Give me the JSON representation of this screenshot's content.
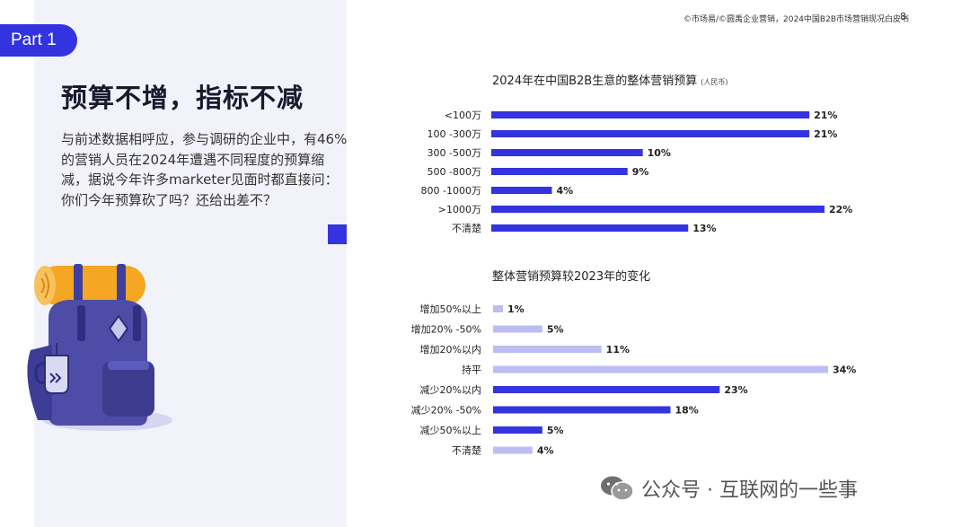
{
  "badge": "Part 1",
  "title": "预算不增，指标不减",
  "body": "与前述数据相呼应，参与调研的企业中，有46%的营销人员在2024年遭遇不同程度的预算缩减，据说今年许多marketer见面时都直接问：你们今年预算砍了吗？还给出差不？",
  "source": "©市场易/©圆禹企业营销，2024中国B2B市场营销现况白皮书",
  "page_number": "8",
  "watermark": "公众号 · 互联网的一些事",
  "icons": {
    "illustration": "backpack-icon",
    "watermark": "wechat-icon"
  },
  "colors": {
    "accent": "#3333e0",
    "bar_dark": "#3333e0",
    "bar_light": "#bdbdf2",
    "panel": "#f2f2fa"
  },
  "chart_data": [
    {
      "type": "bar",
      "orientation": "horizontal",
      "title": "2024年在中国B2B生意的整体营销预算",
      "unit": "(人民币)",
      "categories": [
        "<100万",
        "100 -300万",
        "300 -500万",
        "500 -800万",
        "800 -1000万",
        ">1000万",
        "不清楚"
      ],
      "values": [
        21,
        21,
        10,
        9,
        4,
        22,
        13
      ],
      "value_labels": [
        "21%",
        "21%",
        "10%",
        "9%",
        "4%",
        "22%",
        "13%"
      ],
      "value_suffix": "%",
      "xlim": [
        0,
        22
      ],
      "grid": false,
      "color": "#3333e0"
    },
    {
      "type": "bar",
      "orientation": "horizontal",
      "title": "整体营销预算较2023年的变化",
      "categories": [
        "增加50%以上",
        "增加20% -50%",
        "增加20%以内",
        "持平",
        "减少20%以内",
        "减少20% -50%",
        "减少50%以上",
        "不清楚"
      ],
      "values": [
        1,
        5,
        11,
        34,
        23,
        18,
        5,
        4
      ],
      "value_labels": [
        "1%",
        "5%",
        "11%",
        "34%",
        "23%",
        "18%",
        "5%",
        "4%"
      ],
      "value_suffix": "%",
      "xlim": [
        0,
        34
      ],
      "grid": false,
      "bar_colors": [
        "#bdbdf2",
        "#bdbdf2",
        "#bdbdf2",
        "#bdbdf2",
        "#3333e0",
        "#3333e0",
        "#3333e0",
        "#bdbdf2"
      ]
    }
  ]
}
